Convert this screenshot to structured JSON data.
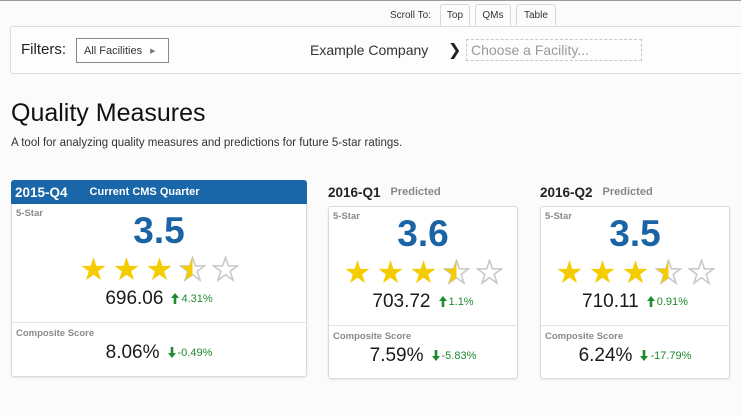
{
  "scroll_to": {
    "label": "Scroll To:",
    "tabs": [
      {
        "label": "Top"
      },
      {
        "label": "QMs"
      },
      {
        "label": "Table"
      }
    ]
  },
  "filters": {
    "label": "Filters:",
    "facility_scope": "All Facilities",
    "company": "Example Company",
    "facility_placeholder": "Choose a Facility..."
  },
  "page": {
    "title": "Quality Measures",
    "subtitle": "A tool for analyzing quality measures and predictions for future 5-star ratings."
  },
  "colors": {
    "header_blue": "#1966a8",
    "rating_blue": "#1a64a6",
    "star_gold": "#f5cc00",
    "star_empty": "#c8c8c8",
    "change_green": "#1f8a2f"
  },
  "cards": [
    {
      "quarter": "2015-Q4",
      "descriptor": "Current CMS Quarter",
      "five_star_label": "5-Star",
      "rating": "3.5",
      "stars": 3.5,
      "score": "696.06",
      "score_change": "4.31%",
      "score_direction": "up",
      "composite_label": "Composite Score",
      "composite": "8.06%",
      "composite_change": "-0.49%",
      "composite_direction": "down"
    },
    {
      "quarter": "2016-Q1",
      "descriptor": "Predicted",
      "five_star_label": "5-Star",
      "rating": "3.6",
      "stars": 3.5,
      "score": "703.72",
      "score_change": "1.1%",
      "score_direction": "up",
      "composite_label": "Composite Score",
      "composite": "7.59%",
      "composite_change": "-5.83%",
      "composite_direction": "down"
    },
    {
      "quarter": "2016-Q2",
      "descriptor": "Predicted",
      "five_star_label": "5-Star",
      "rating": "3.5",
      "stars": 3.5,
      "score": "710.11",
      "score_change": "0.91%",
      "score_direction": "up",
      "composite_label": "Composite Score",
      "composite": "6.24%",
      "composite_change": "-17.79%",
      "composite_direction": "down"
    }
  ]
}
